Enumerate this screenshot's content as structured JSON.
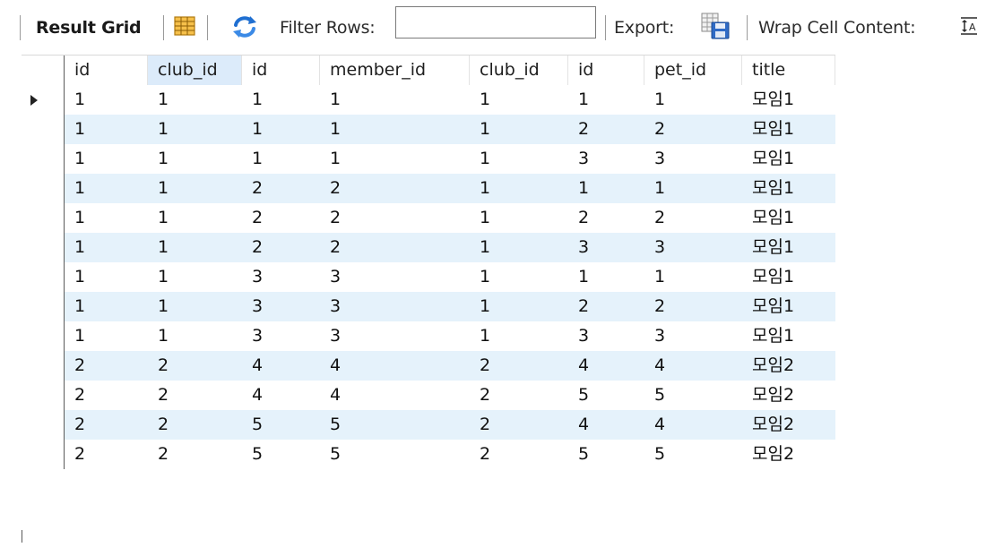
{
  "toolbar": {
    "result_grid": "Result Grid",
    "filter_rows": "Filter Rows:",
    "filter_value": "",
    "export": "Export:",
    "wrap_cell_content": "Wrap Cell Content:"
  },
  "grid": {
    "columns": [
      "id",
      "club_id",
      "id",
      "member_id",
      "club_id",
      "id",
      "pet_id",
      "title"
    ],
    "active_column": 1,
    "current_row": 0,
    "rows": [
      [
        "1",
        "1",
        "1",
        "1",
        "1",
        "1",
        "1",
        "모임1"
      ],
      [
        "1",
        "1",
        "1",
        "1",
        "1",
        "2",
        "2",
        "모임1"
      ],
      [
        "1",
        "1",
        "1",
        "1",
        "1",
        "3",
        "3",
        "모임1"
      ],
      [
        "1",
        "1",
        "2",
        "2",
        "1",
        "1",
        "1",
        "모임1"
      ],
      [
        "1",
        "1",
        "2",
        "2",
        "1",
        "2",
        "2",
        "모임1"
      ],
      [
        "1",
        "1",
        "2",
        "2",
        "1",
        "3",
        "3",
        "모임1"
      ],
      [
        "1",
        "1",
        "3",
        "3",
        "1",
        "1",
        "1",
        "모임1"
      ],
      [
        "1",
        "1",
        "3",
        "3",
        "1",
        "2",
        "2",
        "모임1"
      ],
      [
        "1",
        "1",
        "3",
        "3",
        "1",
        "3",
        "3",
        "모임1"
      ],
      [
        "2",
        "2",
        "4",
        "4",
        "2",
        "4",
        "4",
        "모임2"
      ],
      [
        "2",
        "2",
        "4",
        "4",
        "2",
        "5",
        "5",
        "모임2"
      ],
      [
        "2",
        "2",
        "5",
        "5",
        "2",
        "4",
        "4",
        "모임2"
      ],
      [
        "2",
        "2",
        "5",
        "5",
        "2",
        "5",
        "5",
        "모임2"
      ]
    ]
  },
  "colors": {
    "row_stripe": "#e5f2fb",
    "active_header": "#dcebfa",
    "grid_icon": "#e8a317",
    "refresh_icon": "#1f6fd1"
  }
}
